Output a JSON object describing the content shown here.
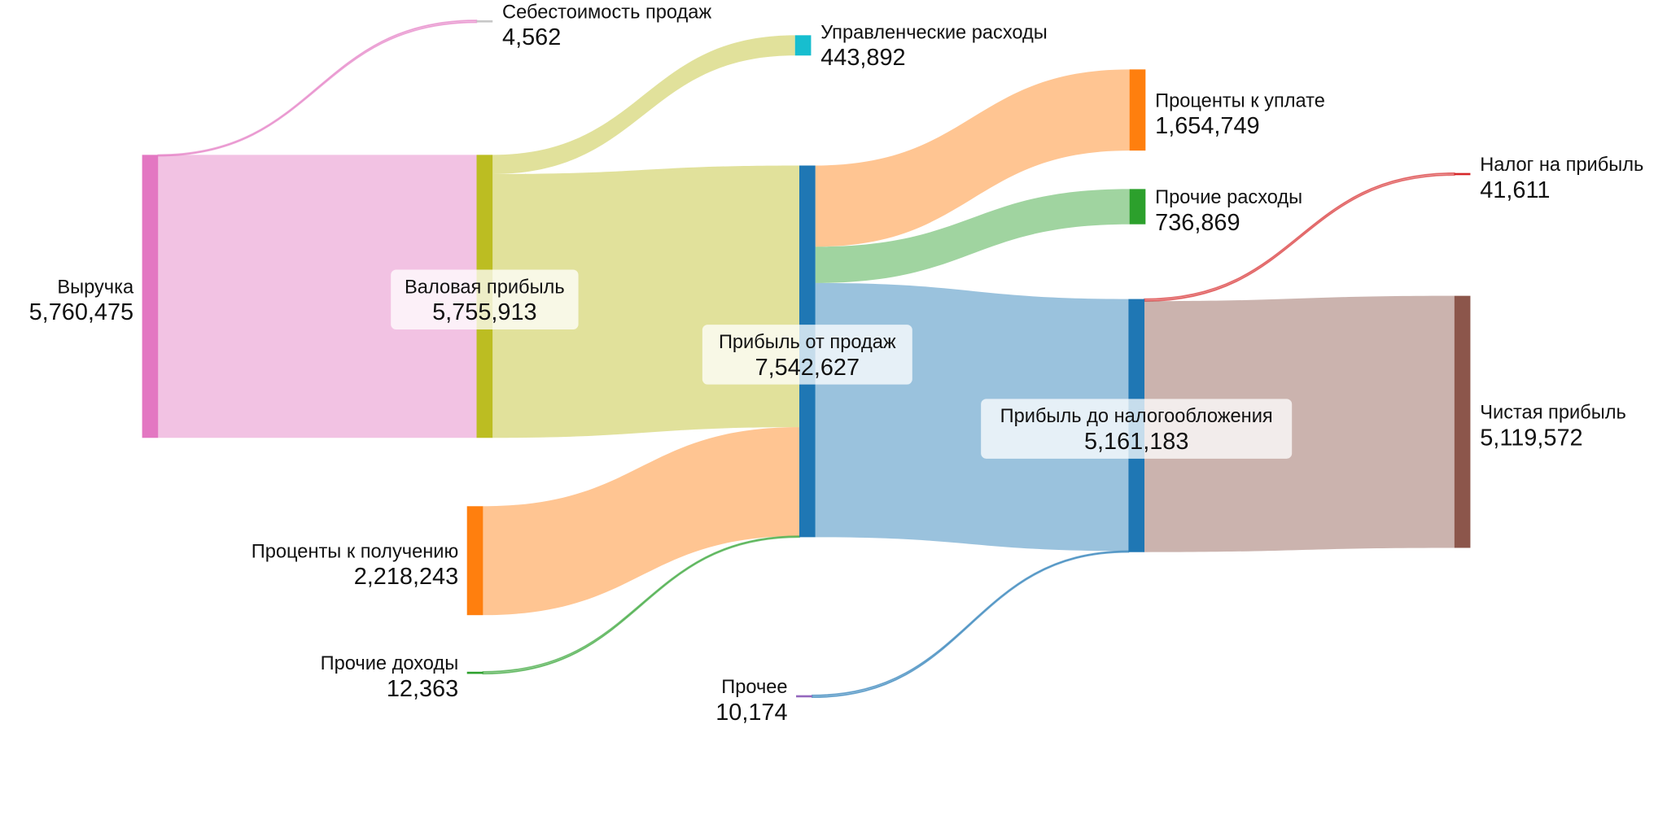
{
  "chart_data": {
    "type": "sankey",
    "title": "",
    "nodes": [
      {
        "id": "revenue",
        "label": "Выручка",
        "value": "5,760,475",
        "color": "#e377c2"
      },
      {
        "id": "cogs",
        "label": "Себестоимость продаж",
        "value": "4,562",
        "color": "#c7c7c7"
      },
      {
        "id": "gross",
        "label": "Валовая прибыль",
        "value": "5,755,913",
        "color": "#bcbd22"
      },
      {
        "id": "admin",
        "label": "Управленческие расходы",
        "value": "443,892",
        "color": "#17becf"
      },
      {
        "id": "sales_profit",
        "label": "Прибыль от продаж",
        "value": "7,542,627",
        "color": "#1f77b4"
      },
      {
        "id": "int_recv",
        "label": "Проценты к получению",
        "value": "2,218,243",
        "color": "#ff7f0e"
      },
      {
        "id": "other_inc",
        "label": "Прочие доходы",
        "value": "12,363",
        "color": "#2ca02c"
      },
      {
        "id": "int_pay",
        "label": "Проценты к уплате",
        "value": "1,654,749",
        "color": "#ff7f0e"
      },
      {
        "id": "other_exp",
        "label": "Прочие расходы",
        "value": "736,869",
        "color": "#2ca02c"
      },
      {
        "id": "pretax",
        "label": "Прибыль до налогообложения",
        "value": "5,161,183",
        "color": "#1f77b4"
      },
      {
        "id": "other",
        "label": "Прочее",
        "value": "10,174",
        "color": "#9467bd"
      },
      {
        "id": "tax",
        "label": "Налог на прибыль",
        "value": "41,611",
        "color": "#d62728"
      },
      {
        "id": "net",
        "label": "Чистая прибыль",
        "value": "5,119,572",
        "color": "#8c564b"
      }
    ],
    "links": [
      {
        "source": "revenue",
        "target": "gross",
        "value": 5755913,
        "color": "#e377c2"
      },
      {
        "source": "revenue",
        "target": "cogs",
        "value": 4562,
        "color": "#e377c2"
      },
      {
        "source": "gross",
        "target": "admin",
        "value": 443892,
        "color": "#bcbd22"
      },
      {
        "source": "gross",
        "target": "sales_profit",
        "value": 5312021,
        "color": "#bcbd22"
      },
      {
        "source": "int_recv",
        "target": "sales_profit",
        "value": 2218243,
        "color": "#ff7f0e"
      },
      {
        "source": "other_inc",
        "target": "sales_profit",
        "value": 12363,
        "color": "#2ca02c"
      },
      {
        "source": "sales_profit",
        "target": "int_pay",
        "value": 1654749,
        "color": "#ff7f0e"
      },
      {
        "source": "sales_profit",
        "target": "other_exp",
        "value": 736869,
        "color": "#2ca02c"
      },
      {
        "source": "sales_profit",
        "target": "pretax",
        "value": 5151009,
        "color": "#1f77b4"
      },
      {
        "source": "other",
        "target": "pretax",
        "value": 10174,
        "color": "#1f77b4"
      },
      {
        "source": "pretax",
        "target": "tax",
        "value": 41611,
        "color": "#d62728"
      },
      {
        "source": "pretax",
        "target": "net",
        "value": 5119572,
        "color": "#8c564b"
      }
    ]
  }
}
